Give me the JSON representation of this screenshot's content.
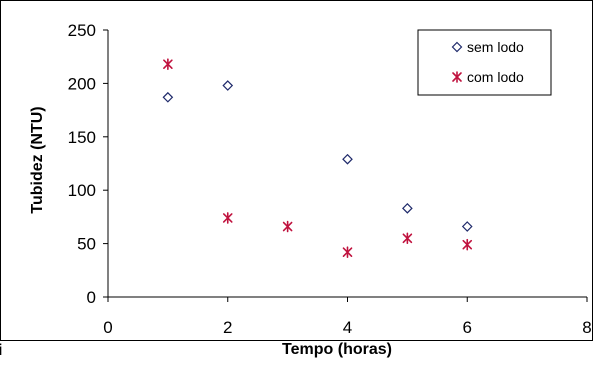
{
  "chart_data": {
    "type": "scatter",
    "xlabel": "Tempo (horas)",
    "ylabel": "Tubidez (NTU)",
    "xlim": [
      0,
      8
    ],
    "ylim": [
      0,
      250
    ],
    "xticks": [
      0,
      2,
      4,
      6,
      8
    ],
    "yticks": [
      0,
      50,
      100,
      150,
      200,
      250
    ],
    "grid": false,
    "legend_position": "top-right",
    "series": [
      {
        "name": "sem lodo",
        "marker": "diamond",
        "color": "#1f2a6b",
        "x": [
          1,
          2,
          4,
          5,
          6
        ],
        "y": [
          187,
          198,
          129,
          83,
          66
        ]
      },
      {
        "name": "com lodo",
        "marker": "asterisk",
        "color": "#c0123e",
        "x": [
          1,
          2,
          3,
          4,
          5,
          6
        ],
        "y": [
          218,
          74,
          66,
          42,
          55,
          49
        ]
      }
    ]
  },
  "stray_text": "i"
}
